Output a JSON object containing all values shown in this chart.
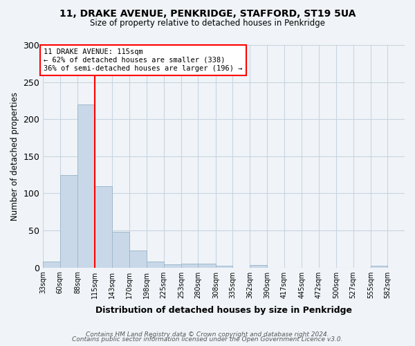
{
  "title1": "11, DRAKE AVENUE, PENKRIDGE, STAFFORD, ST19 5UA",
  "title2": "Size of property relative to detached houses in Penkridge",
  "xlabel": "Distribution of detached houses by size in Penkridge",
  "ylabel": "Number of detached properties",
  "bin_labels": [
    "33sqm",
    "60sqm",
    "88sqm",
    "115sqm",
    "143sqm",
    "170sqm",
    "198sqm",
    "225sqm",
    "253sqm",
    "280sqm",
    "308sqm",
    "335sqm",
    "362sqm",
    "390sqm",
    "417sqm",
    "445sqm",
    "472sqm",
    "500sqm",
    "527sqm",
    "555sqm",
    "582sqm"
  ],
  "bin_edges": [
    33,
    60,
    88,
    115,
    143,
    170,
    198,
    225,
    253,
    280,
    308,
    335,
    362,
    390,
    417,
    445,
    472,
    500,
    527,
    555,
    582
  ],
  "bar_heights": [
    8,
    125,
    220,
    110,
    48,
    23,
    8,
    4,
    5,
    5,
    2,
    0,
    3,
    0,
    0,
    0,
    0,
    0,
    0,
    2,
    0
  ],
  "bar_color": "#c8d8e8",
  "bar_edge_color": "#a0b8cc",
  "property_line_x": 115,
  "property_line_color": "red",
  "annotation_line1": "11 DRAKE AVENUE: 115sqm",
  "annotation_line2": "← 62% of detached houses are smaller (338)",
  "annotation_line3": "36% of semi-detached houses are larger (196) →",
  "annotation_box_color": "white",
  "annotation_box_edge_color": "red",
  "ylim": [
    0,
    300
  ],
  "yticks": [
    0,
    50,
    100,
    150,
    200,
    250,
    300
  ],
  "footnote1": "Contains HM Land Registry data © Crown copyright and database right 2024.",
  "footnote2": "Contains public sector information licensed under the Open Government Licence v3.0.",
  "bg_color": "#f0f4f8",
  "grid_color": "#c8d4e0"
}
